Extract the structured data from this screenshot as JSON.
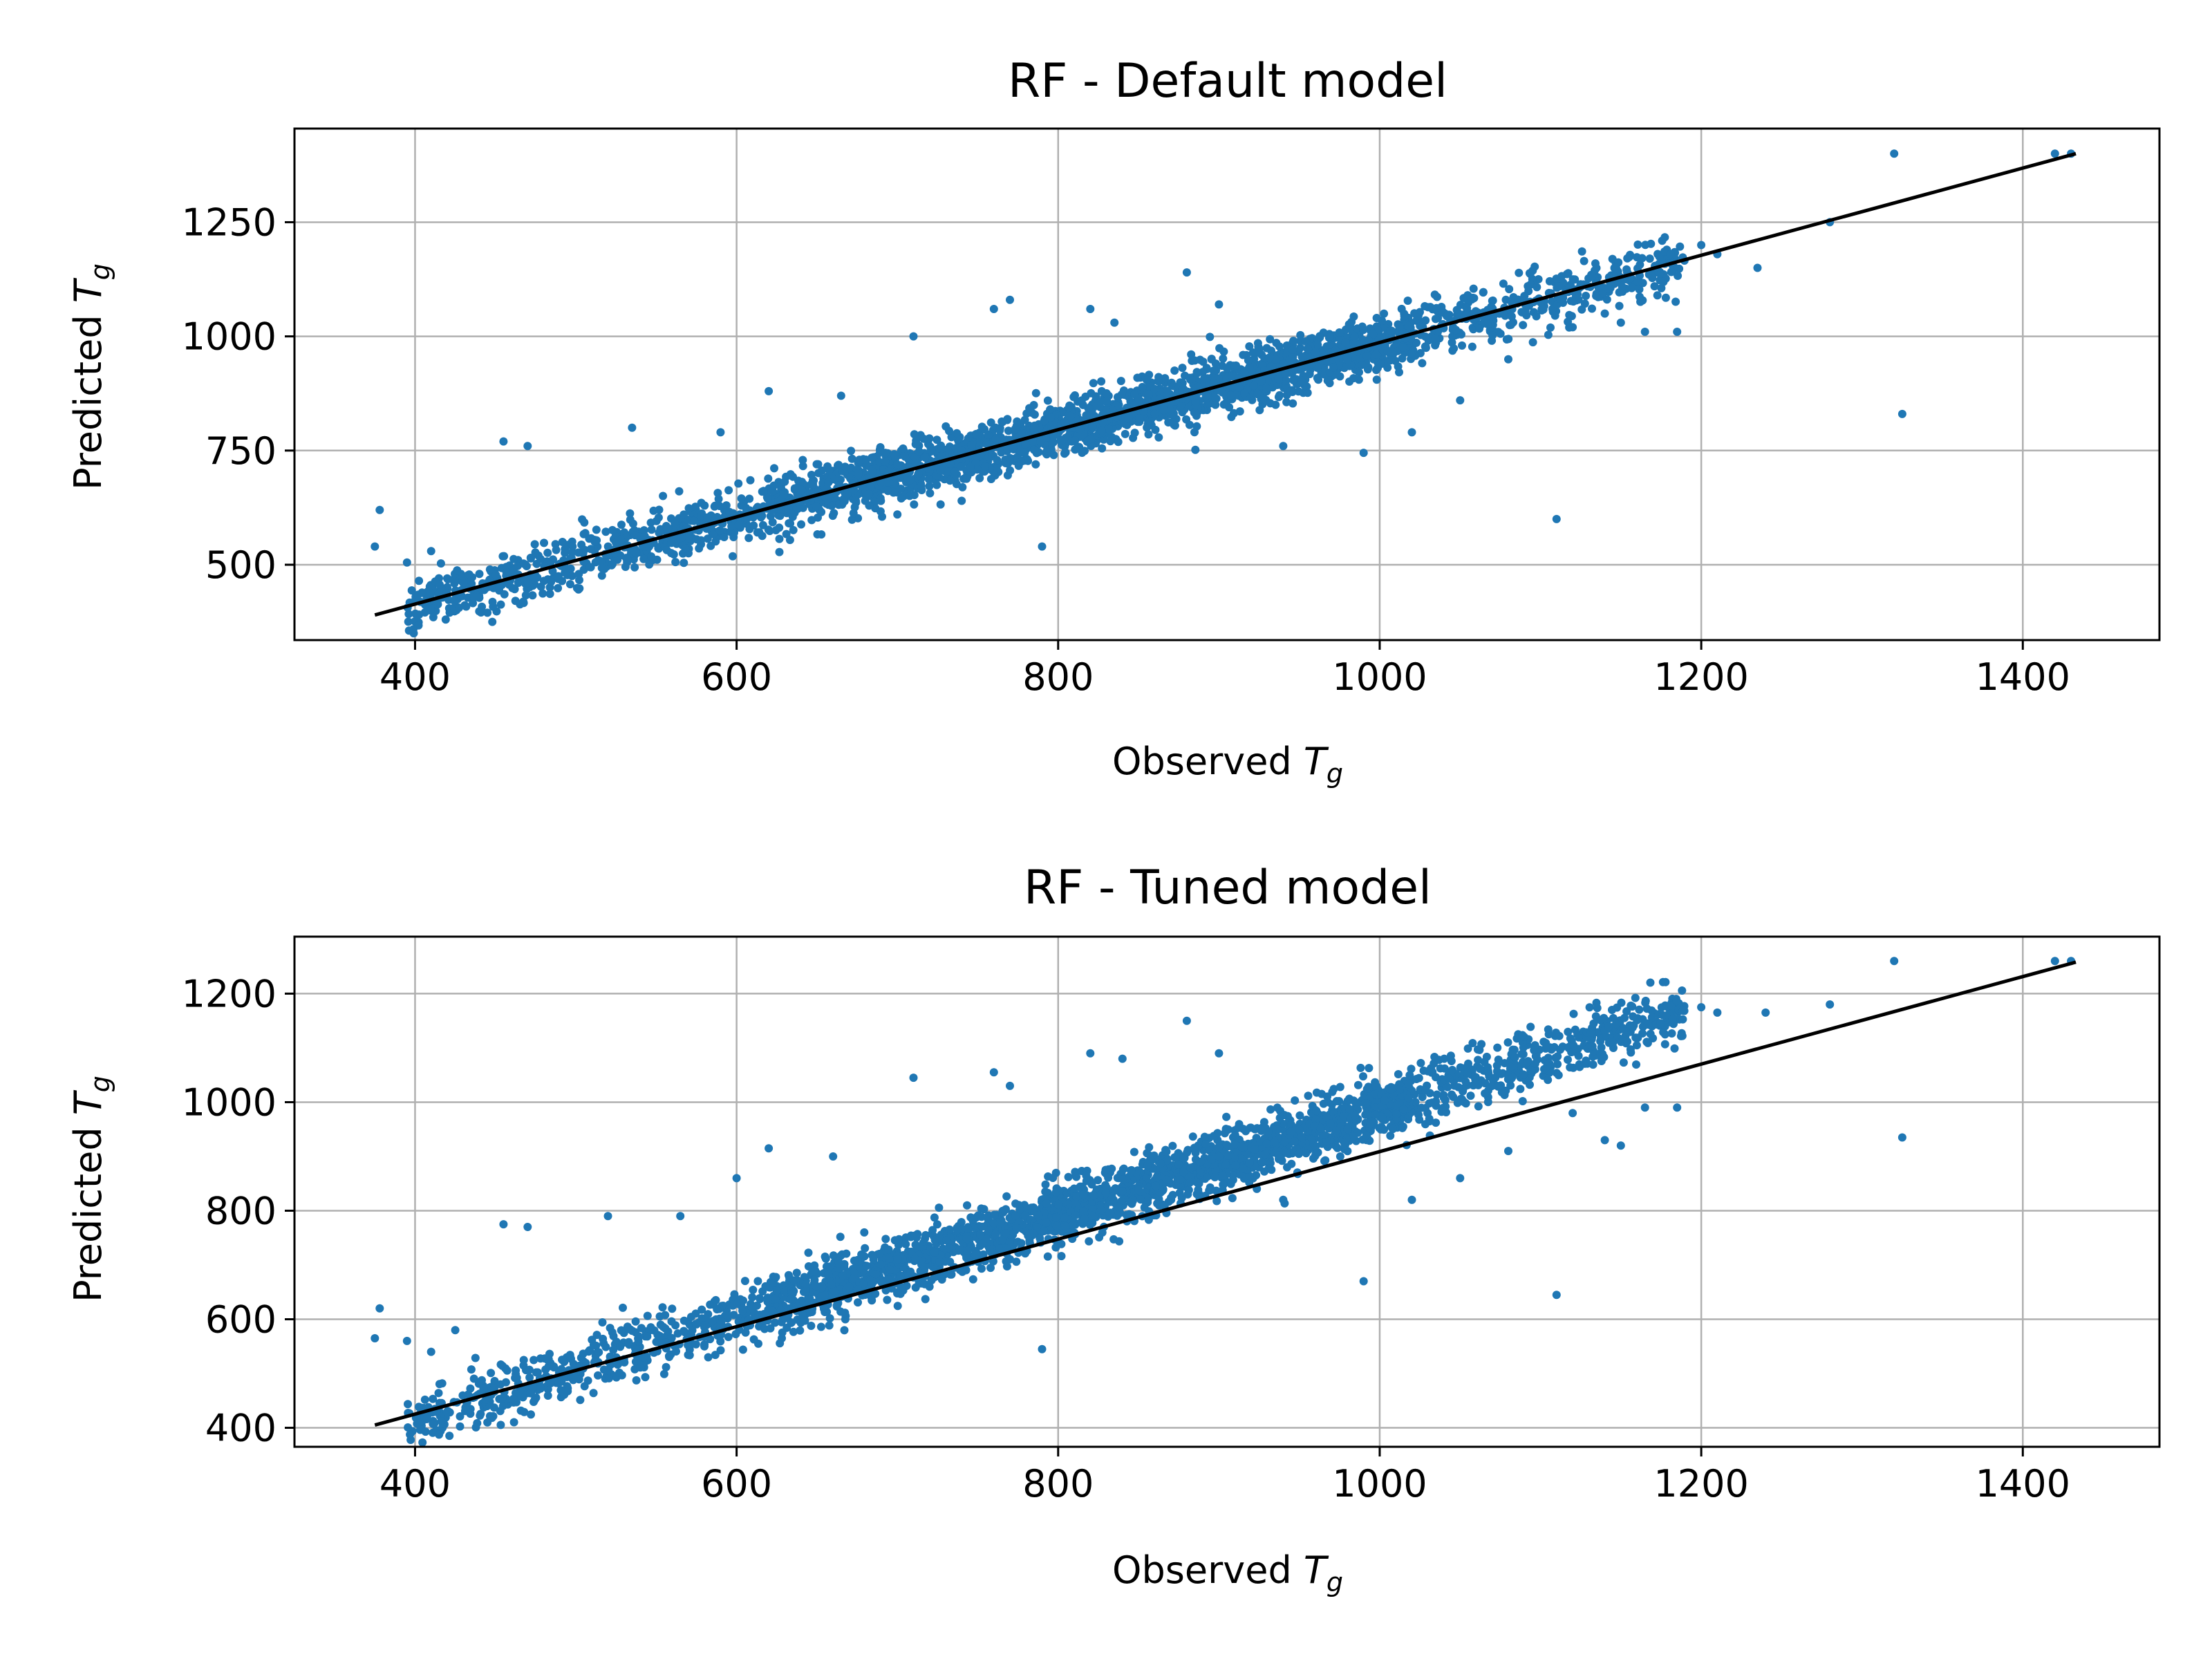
{
  "chart_data": [
    {
      "type": "scatter",
      "title": "RF - Default model",
      "xlabel_main": "Observed ",
      "xlabel_var": "T",
      "xlabel_sub": "g",
      "ylabel_main": "Predicted ",
      "ylabel_var": "T",
      "ylabel_sub": "g",
      "xlim": [
        325,
        1485
      ],
      "ylim": [
        335,
        1455
      ],
      "xticks": [
        400,
        600,
        800,
        1000,
        1200,
        1400
      ],
      "yticks": [
        500,
        750,
        1000,
        1250
      ],
      "grid": true,
      "point_color": "#1f77b4",
      "line_color": "#000000",
      "fit_line": {
        "x": [
          375,
          1433
        ],
        "y": [
          390,
          1400
        ]
      },
      "series_model": {
        "x_min": 395,
        "x_max": 1190,
        "slope": 0.955,
        "intercept": 32,
        "noise": 30,
        "count": 3000
      },
      "outliers": [
        [
          375,
          540
        ],
        [
          378,
          620
        ],
        [
          395,
          505
        ],
        [
          410,
          530
        ],
        [
          420,
          470
        ],
        [
          430,
          460
        ],
        [
          440,
          480
        ],
        [
          445,
          395
        ],
        [
          455,
          770
        ],
        [
          470,
          760
        ],
        [
          535,
          800
        ],
        [
          590,
          790
        ],
        [
          620,
          880
        ],
        [
          665,
          870
        ],
        [
          710,
          1000
        ],
        [
          690,
          680
        ],
        [
          680,
          640
        ],
        [
          740,
          640
        ],
        [
          700,
          610
        ],
        [
          760,
          1060
        ],
        [
          770,
          1080
        ],
        [
          790,
          540
        ],
        [
          820,
          1060
        ],
        [
          835,
          1030
        ],
        [
          880,
          1140
        ],
        [
          900,
          1070
        ],
        [
          905,
          930
        ],
        [
          940,
          760
        ],
        [
          990,
          745
        ],
        [
          1020,
          790
        ],
        [
          1050,
          860
        ],
        [
          1080,
          950
        ],
        [
          1110,
          600
        ],
        [
          1120,
          1020
        ],
        [
          1140,
          1050
        ],
        [
          1150,
          1030
        ],
        [
          1165,
          1010
        ],
        [
          1185,
          1010
        ],
        [
          1200,
          1200
        ],
        [
          1210,
          1180
        ],
        [
          1235,
          1150
        ],
        [
          1280,
          1250
        ],
        [
          1320,
          1400
        ],
        [
          1325,
          830
        ],
        [
          1420,
          1400
        ],
        [
          1430,
          1400
        ]
      ]
    },
    {
      "type": "scatter",
      "title": "RF - Tuned model",
      "xlabel_main": "Observed ",
      "xlabel_var": "T",
      "xlabel_sub": "g",
      "ylabel_main": "Predicted ",
      "ylabel_var": "T",
      "ylabel_sub": "g",
      "xlim": [
        325,
        1485
      ],
      "ylim": [
        365,
        1305
      ],
      "xticks": [
        400,
        600,
        800,
        1000,
        1200,
        1400
      ],
      "yticks": [
        400,
        600,
        800,
        1000,
        1200
      ],
      "grid": true,
      "point_color": "#1f77b4",
      "line_color": "#000000",
      "fit_line": {
        "x": [
          375,
          1433
        ],
        "y": [
          405,
          1258
        ]
      },
      "series_model": {
        "x_min": 395,
        "x_max": 1190,
        "slope": 0.96,
        "intercept": 27,
        "noise": 28,
        "count": 3000
      },
      "outliers": [
        [
          375,
          565
        ],
        [
          378,
          620
        ],
        [
          395,
          560
        ],
        [
          410,
          540
        ],
        [
          425,
          580
        ],
        [
          445,
          410
        ],
        [
          455,
          775
        ],
        [
          470,
          770
        ],
        [
          520,
          790
        ],
        [
          565,
          790
        ],
        [
          600,
          860
        ],
        [
          620,
          915
        ],
        [
          660,
          900
        ],
        [
          710,
          1045
        ],
        [
          700,
          650
        ],
        [
          670,
          660
        ],
        [
          720,
          660
        ],
        [
          760,
          1055
        ],
        [
          770,
          1030
        ],
        [
          790,
          545
        ],
        [
          820,
          1090
        ],
        [
          840,
          1080
        ],
        [
          880,
          1150
        ],
        [
          900,
          1090
        ],
        [
          900,
          900
        ],
        [
          940,
          820
        ],
        [
          990,
          670
        ],
        [
          1020,
          820
        ],
        [
          1050,
          860
        ],
        [
          1080,
          910
        ],
        [
          1110,
          645
        ],
        [
          1120,
          980
        ],
        [
          1140,
          930
        ],
        [
          1150,
          920
        ],
        [
          1165,
          990
        ],
        [
          1185,
          990
        ],
        [
          1200,
          1175
        ],
        [
          1210,
          1165
        ],
        [
          1240,
          1165
        ],
        [
          1280,
          1180
        ],
        [
          1320,
          1260
        ],
        [
          1325,
          935
        ],
        [
          1420,
          1260
        ],
        [
          1430,
          1260
        ]
      ]
    }
  ]
}
